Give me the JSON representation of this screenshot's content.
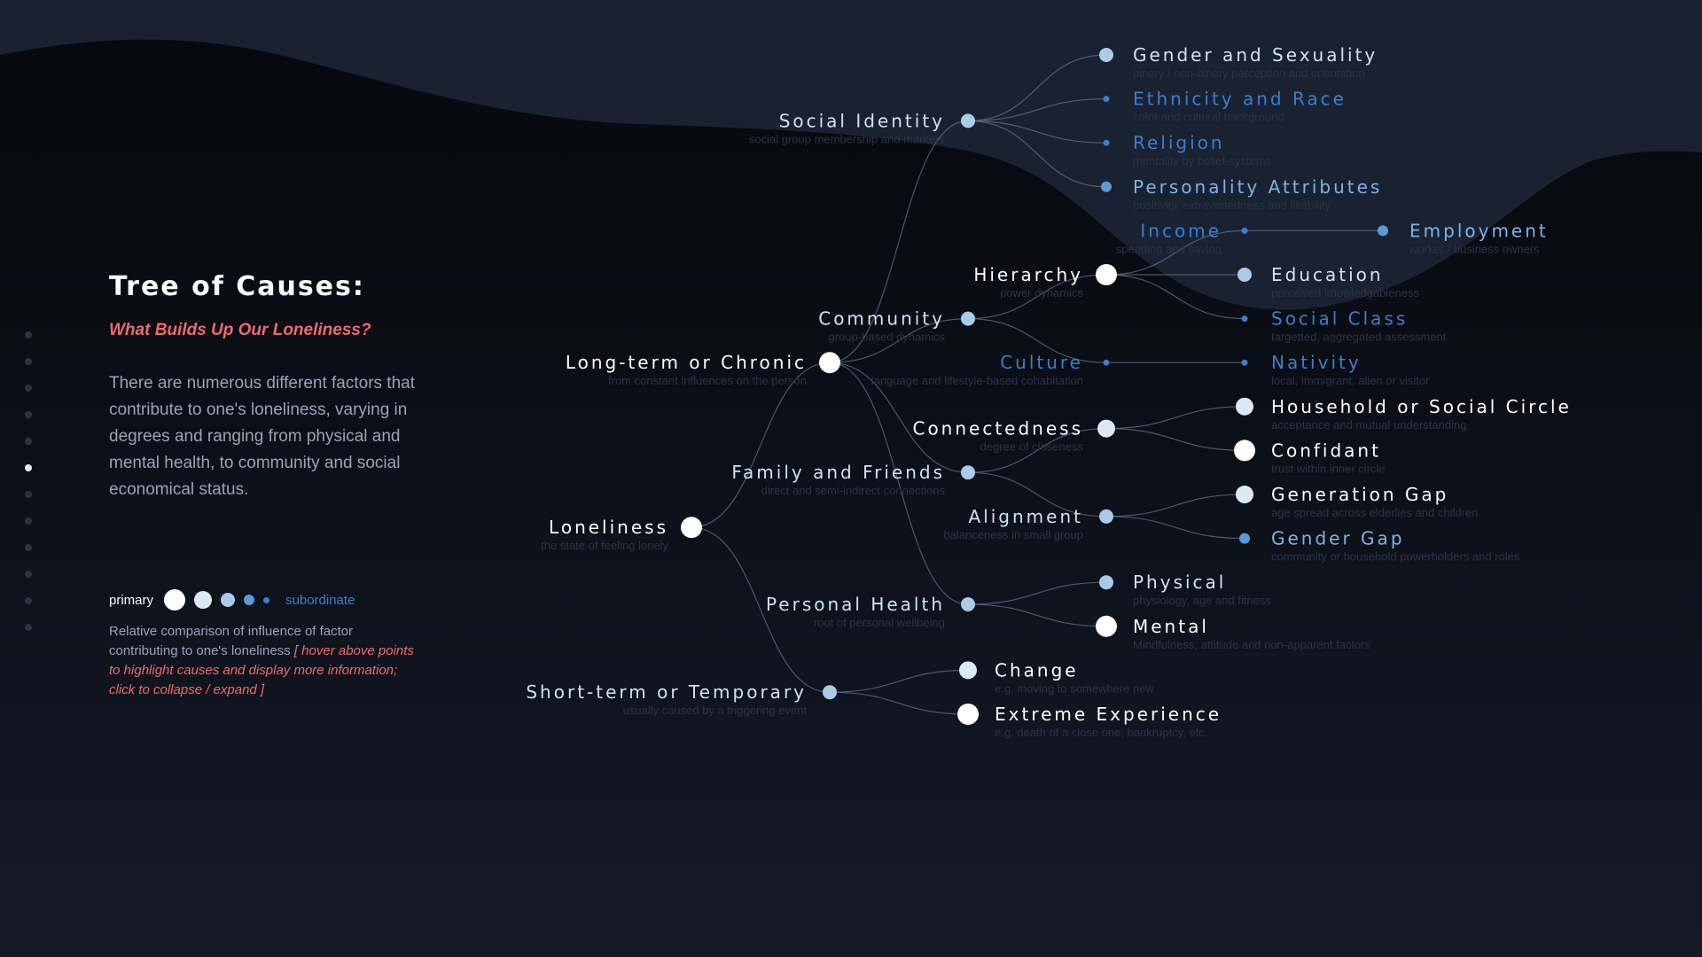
{
  "title": "Tree of Causes:",
  "subtitle": "What Builds Up Our Loneliness?",
  "description": "There are numerous different factors that contribute to one's loneliness, varying in degrees and ranging from physical and mental health, to community and social economical status.",
  "legend": {
    "primary_label": "primary",
    "subordinate_label": "subordinate",
    "note": "Relative comparison of influence of factor contributing to one's loneliness",
    "hint": "[ hover above points to highlight causes and display more information; click to collapse / expand ]"
  },
  "side_nav": {
    "count": 12,
    "active_index": 5
  },
  "colors": {
    "primary": "#ffffff",
    "level2": "#dce9f5",
    "level3": "#a9cbe8",
    "level4": "#5b9ad6",
    "subordinate": "#3a7fd0",
    "accent": "#ef6a6a"
  },
  "tree": {
    "name": "Loneliness",
    "desc": "the state of feeling lonely",
    "level": 1,
    "children": [
      {
        "name": "Long-term or Chronic",
        "desc": "from constant influences on the person",
        "level": 1,
        "children": [
          {
            "name": "Social Identity",
            "desc": "social group membership and markers",
            "level": 3,
            "children": [
              {
                "name": "Gender and Sexuality",
                "desc": "binary / non-binary perception and orientation",
                "level": 3
              },
              {
                "name": "Ethnicity and Race",
                "desc": "color and cultural background",
                "level": 5
              },
              {
                "name": "Religion",
                "desc": "mentality by belief-systems",
                "level": 5
              },
              {
                "name": "Personality Attributes",
                "desc": "positivity, extravertedness and likability",
                "level": 4
              }
            ]
          },
          {
            "name": "Community",
            "desc": "group-based dynamics",
            "level": 3,
            "children": [
              {
                "name": "Hierarchy",
                "desc": "power dynamics",
                "level": 1,
                "children": [
                  {
                    "name": "Income",
                    "desc": "spending and saving",
                    "level": 5,
                    "children": [
                      {
                        "name": "Employment",
                        "desc": "worker / business owners",
                        "level": 4
                      }
                    ]
                  },
                  {
                    "name": "Education",
                    "desc": "perceived knowledgableness",
                    "level": 3
                  },
                  {
                    "name": "Social Class",
                    "desc": "targetted, aggregated assessment",
                    "level": 5
                  }
                ]
              },
              {
                "name": "Culture",
                "desc": "language and lifestyle-based cohabitation",
                "level": 5,
                "children": [
                  {
                    "name": "Nativity",
                    "desc": "local, immigrant, alien or visitor",
                    "level": 5
                  }
                ]
              }
            ]
          },
          {
            "name": "Family and Friends",
            "desc": "direct and semi-indirect connections",
            "level": 3,
            "children": [
              {
                "name": "Connectedness",
                "desc": "degree of closeness",
                "level": 2,
                "children": [
                  {
                    "name": "Household or Social Circle",
                    "desc": "acceptance and mutual understanding",
                    "level": 2
                  },
                  {
                    "name": "Confidant",
                    "desc": "trust within inner circle",
                    "level": 1
                  }
                ]
              },
              {
                "name": "Alignment",
                "desc": "balanceness in small group",
                "level": 3,
                "children": [
                  {
                    "name": "Generation Gap",
                    "desc": "age spread across elderlies and children",
                    "level": 2
                  },
                  {
                    "name": "Gender Gap",
                    "desc": "community or household powerholders and roles",
                    "level": 4
                  }
                ]
              }
            ]
          },
          {
            "name": "Personal Health",
            "desc": "root of personal wellbeing",
            "level": 3,
            "children": [
              {
                "name": "Physical",
                "desc": "physiology, age and fitness",
                "level": 3
              },
              {
                "name": "Mental",
                "desc": "Mindfulness, attitude and non-apparent factors",
                "level": 1
              }
            ]
          }
        ]
      },
      {
        "name": "Short-term or Temporary",
        "desc": "usually caused by a triggering event",
        "level": 3,
        "children": [
          {
            "name": "Change",
            "desc": "e.g. moving to somewhere new",
            "level": 2
          },
          {
            "name": "Extreme Experience",
            "desc": "e.g. death of a close one, bankruptcy, etc.",
            "level": 1
          }
        ]
      }
    ]
  }
}
